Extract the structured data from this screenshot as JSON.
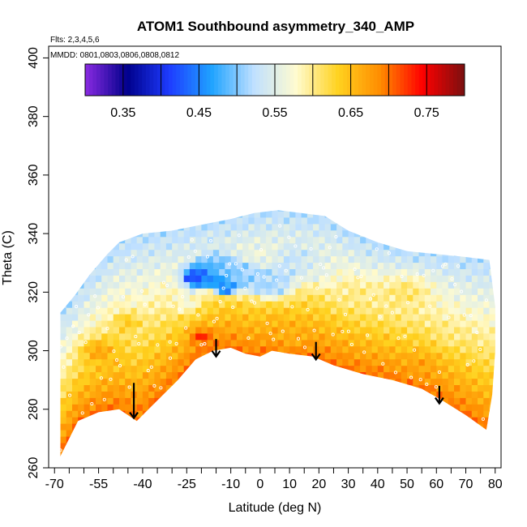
{
  "chart_data": {
    "type": "heatmap",
    "title": "ATOM1 Southbound asymmetry_340_AMP",
    "flights_note": "Flts: 2,3,4,5,6",
    "mmdd_note": "MMDD: 0801,0803,0806,0808,0812",
    "xlabel": "Latitude (deg N)",
    "ylabel": "Theta (C)",
    "xlim": [
      -72,
      82
    ],
    "ylim": [
      260,
      404
    ],
    "x_ticks": [
      "-70",
      "-55",
      "-40",
      "-25",
      "-10",
      "0",
      "10",
      "20",
      "30",
      "40",
      "50",
      "60",
      "70",
      "80"
    ],
    "x_tick_values": [
      -70,
      -55,
      -40,
      -25,
      -10,
      0,
      10,
      20,
      30,
      40,
      50,
      60,
      70,
      80
    ],
    "y_ticks": [
      "260",
      "280",
      "300",
      "320",
      "340",
      "360",
      "380",
      "400"
    ],
    "y_tick_values": [
      260,
      280,
      300,
      320,
      340,
      360,
      380,
      400
    ],
    "colorbar": {
      "range": [
        0.3,
        0.8
      ],
      "tick_labels": [
        "0.35",
        "0.45",
        "0.55",
        "0.65",
        "0.75"
      ],
      "tick_values": [
        0.35,
        0.45,
        0.55,
        0.65,
        0.75
      ],
      "colors": [
        "#8a2be2",
        "#00008b",
        "#1e3cff",
        "#1fa3ff",
        "#bfe0ff",
        "#fffbd0",
        "#ffd21f",
        "#ff8c00",
        "#ff0000",
        "#7a1010"
      ]
    },
    "field": {
      "lower_boundary": [
        [
          -68,
          264
        ],
        [
          -62,
          276
        ],
        [
          -55,
          279
        ],
        [
          -48,
          280
        ],
        [
          -42,
          276
        ],
        [
          -35,
          283
        ],
        [
          -28,
          290
        ],
        [
          -22,
          297
        ],
        [
          -16,
          300
        ],
        [
          -10,
          301
        ],
        [
          -5,
          299
        ],
        [
          0,
          298
        ],
        [
          4,
          300
        ],
        [
          10,
          299
        ],
        [
          18,
          298
        ],
        [
          25,
          295
        ],
        [
          35,
          292
        ],
        [
          45,
          290
        ],
        [
          55,
          287
        ],
        [
          62,
          283
        ],
        [
          70,
          278
        ],
        [
          77,
          273
        ]
      ],
      "upper_boundary": [
        [
          -68,
          313
        ],
        [
          -63,
          319
        ],
        [
          -58,
          326
        ],
        [
          -52,
          333
        ],
        [
          -48,
          337
        ],
        [
          -40,
          340
        ],
        [
          -30,
          341
        ],
        [
          -20,
          343
        ],
        [
          -10,
          345
        ],
        [
          -2,
          347
        ],
        [
          6,
          348
        ],
        [
          14,
          347
        ],
        [
          22,
          346
        ],
        [
          30,
          341
        ],
        [
          40,
          337
        ],
        [
          50,
          334
        ],
        [
          60,
          333
        ],
        [
          70,
          332
        ],
        [
          78,
          331
        ]
      ],
      "right_edge": [
        [
          78,
          331
        ],
        [
          80,
          315
        ],
        [
          80,
          300
        ],
        [
          79,
          285
        ],
        [
          77,
          273
        ]
      ],
      "features": [
        {
          "lat": -22,
          "theta": 325,
          "value": 0.4,
          "size": 6
        },
        {
          "lat": -12,
          "theta": 322,
          "value": 0.43,
          "size": 4
        },
        {
          "lat": -15,
          "theta": 330,
          "value": 0.5,
          "size": 9
        },
        {
          "lat": -5,
          "theta": 325,
          "value": 0.51,
          "size": 8
        },
        {
          "lat": 5,
          "theta": 322,
          "value": 0.52,
          "size": 8
        },
        {
          "lat": 12,
          "theta": 332,
          "value": 0.53,
          "size": 10
        },
        {
          "lat": 22,
          "theta": 328,
          "value": 0.56,
          "size": 8
        },
        {
          "lat": -25,
          "theta": 316,
          "value": 0.57,
          "size": 6
        },
        {
          "lat": 30,
          "theta": 320,
          "value": 0.6,
          "size": 9
        },
        {
          "lat": 50,
          "theta": 320,
          "value": 0.61,
          "size": 12
        },
        {
          "lat": -20,
          "theta": 305,
          "value": 0.73,
          "size": 5
        },
        {
          "lat": -55,
          "theta": 300,
          "value": 0.67,
          "size": 8
        },
        {
          "lat": -45,
          "theta": 310,
          "value": 0.64,
          "size": 6
        },
        {
          "lat": 55,
          "theta": 295,
          "value": 0.67,
          "size": 8
        },
        {
          "lat": 10,
          "theta": 305,
          "value": 0.66,
          "size": 8
        },
        {
          "lat": 65,
          "theta": 305,
          "value": 0.6,
          "size": 6
        }
      ]
    },
    "arrows": [
      {
        "lat": -43,
        "theta_top": 289,
        "theta_tip": 277
      },
      {
        "lat": -15,
        "theta_top": 304,
        "theta_tip": 298
      },
      {
        "lat": 19,
        "theta_top": 303,
        "theta_tip": 297
      },
      {
        "lat": 61,
        "theta_top": 288,
        "theta_tip": 282
      }
    ]
  }
}
